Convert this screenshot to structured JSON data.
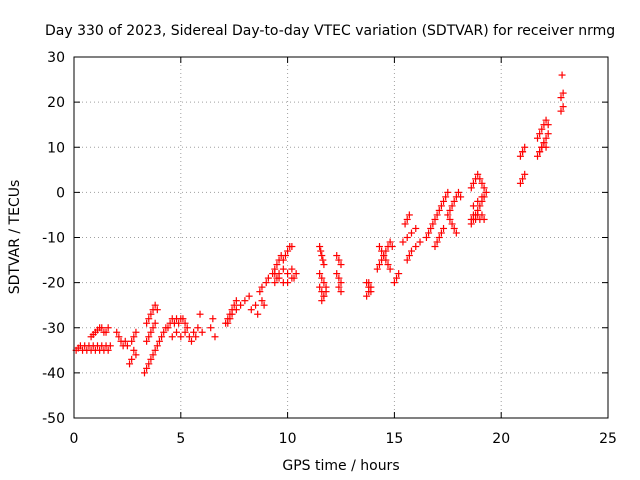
{
  "chart_data": {
    "type": "scatter",
    "title": "Day 330 of 2023, Sidereal Day-to-day VTEC variation (SDTVAR) for receiver nrmg",
    "xlabel": "GPS time / hours",
    "ylabel": "SDTVAR / TECUs",
    "xlim": [
      0,
      25
    ],
    "ylim": [
      -50,
      30
    ],
    "xticks": [
      0,
      5,
      10,
      15,
      20,
      25
    ],
    "yticks": [
      -50,
      -40,
      -30,
      -20,
      -10,
      0,
      10,
      20,
      30
    ],
    "grid": true,
    "marker": "plus",
    "color": "#ff0000",
    "series": [
      {
        "x": [
          0.1,
          0.2,
          0.3,
          0.4,
          0.5,
          0.6,
          0.7,
          0.8,
          0.9,
          1.0,
          1.1,
          1.2,
          1.3,
          1.4,
          1.5,
          1.6,
          1.7,
          0.8,
          0.9,
          1.0,
          1.1,
          1.2,
          1.3,
          1.4,
          1.5,
          1.6,
          2.0,
          2.1,
          2.2,
          2.3,
          2.4,
          2.5,
          2.7,
          2.8,
          2.9,
          2.6,
          2.7,
          2.8,
          2.9,
          3.3,
          3.4,
          3.5,
          3.6,
          3.7,
          3.8,
          3.9,
          4.0,
          4.1,
          4.2,
          4.3,
          3.4,
          3.5,
          3.6,
          3.7,
          3.8,
          3.9,
          3.4,
          3.5,
          3.6,
          3.7,
          3.8,
          4.4,
          4.5,
          4.6,
          4.7,
          4.8,
          4.9,
          5.0,
          5.1,
          5.2,
          5.3,
          4.6,
          4.8,
          5.0,
          5.2,
          5.4,
          5.6,
          5.8,
          6.0,
          5.5,
          5.7,
          5.9,
          6.4,
          6.6,
          6.5,
          7.1,
          7.2,
          7.3,
          7.4,
          7.5,
          7.6,
          7.2,
          7.3,
          7.4,
          7.6,
          7.8,
          8.0,
          8.2,
          8.3,
          8.5,
          8.6,
          8.8,
          8.9,
          8.7,
          8.8,
          9.0,
          9.1,
          9.3,
          9.4,
          9.5,
          9.6,
          9.7,
          9.8,
          9.9,
          10.0,
          10.1,
          10.2,
          9.4,
          9.6,
          9.8,
          10.0,
          10.2,
          10.3,
          10.4,
          9.4,
          9.5,
          9.6,
          9.8,
          10.0,
          10.2,
          11.5,
          11.55,
          11.6,
          11.65,
          11.7,
          11.5,
          11.6,
          11.7,
          11.8,
          11.5,
          11.6,
          11.7,
          11.8,
          11.6,
          11.7,
          12.3,
          12.4,
          12.5,
          12.3,
          12.4,
          12.5,
          12.4,
          12.5,
          13.7,
          13.8,
          13.9,
          13.7,
          13.8,
          13.9,
          13.8,
          14.2,
          14.3,
          14.4,
          14.5,
          14.6,
          14.7,
          14.8,
          14.9,
          14.3,
          14.4,
          14.5,
          14.6,
          14.7,
          14.8,
          15.0,
          15.1,
          15.2,
          15.4,
          15.6,
          15.8,
          16.0,
          15.5,
          15.6,
          15.7,
          15.6,
          15.7,
          15.8,
          16.0,
          16.2,
          16.5,
          16.6,
          16.7,
          16.8,
          16.9,
          17.0,
          17.1,
          17.2,
          17.3,
          17.4,
          17.5,
          16.9,
          17.0,
          17.1,
          17.2,
          17.3,
          17.5,
          17.6,
          17.7,
          17.8,
          17.9,
          17.6,
          17.7,
          17.8,
          17.9,
          18.0,
          18.1,
          18.6,
          18.7,
          18.8,
          18.9,
          19.0,
          19.1,
          19.2,
          19.3,
          18.6,
          18.7,
          18.8,
          18.9,
          19.0,
          19.1,
          19.2,
          18.6,
          18.7,
          18.8,
          18.9,
          19.0,
          19.1,
          19.2,
          18.7,
          18.9,
          19.1,
          20.9,
          21.0,
          21.1,
          20.9,
          21.0,
          21.1,
          21.0,
          21.7,
          21.8,
          21.9,
          22.0,
          22.1,
          22.2,
          21.7,
          21.8,
          21.9,
          22.0,
          22.1,
          22.2,
          21.8,
          21.9,
          22.0,
          22.1,
          22.8,
          22.9,
          22.8,
          22.9,
          22.85
        ],
        "y": [
          -35,
          -34.5,
          -34,
          -35,
          -34,
          -35,
          -34,
          -35,
          -34,
          -35,
          -34,
          -35,
          -34,
          -35,
          -34,
          -35,
          -34,
          -32,
          -31.5,
          -31,
          -30.5,
          -30,
          -30,
          -31,
          -31,
          -30,
          -31,
          -32,
          -33,
          -34,
          -33,
          -34,
          -33,
          -35,
          -36,
          -38,
          -37,
          -32,
          -31,
          -40,
          -39,
          -38,
          -37,
          -36,
          -35,
          -34,
          -33,
          -32,
          -31,
          -30,
          -29,
          -28,
          -27,
          -26,
          -25,
          -26,
          -33,
          -32,
          -31,
          -30,
          -29,
          -30,
          -29,
          -28,
          -29,
          -28,
          -29,
          -28,
          -28,
          -29,
          -30,
          -32,
          -31,
          -32,
          -31,
          -32,
          -31,
          -30,
          -31,
          -33,
          -32,
          -27,
          -30,
          -32,
          -28,
          -29,
          -28,
          -27,
          -26,
          -25,
          -24,
          -29,
          -28,
          -27,
          -26,
          -25,
          -24,
          -23,
          -26,
          -25,
          -27,
          -24,
          -25,
          -22,
          -21,
          -20,
          -19,
          -18,
          -17,
          -16,
          -15,
          -14,
          -15,
          -14,
          -13,
          -12,
          -12,
          -18,
          -19,
          -20,
          -18,
          -17,
          -19,
          -18,
          -20,
          -19,
          -18,
          -17,
          -20,
          -19,
          -12,
          -13,
          -14,
          -15,
          -16,
          -18,
          -19,
          -20,
          -21,
          -21,
          -22,
          -23,
          -22,
          -24,
          -23,
          -14,
          -15,
          -16,
          -18,
          -19,
          -20,
          -21,
          -22,
          -20,
          -21,
          -22,
          -23,
          -22,
          -21,
          -20,
          -17,
          -16,
          -15,
          -14,
          -13,
          -12,
          -11,
          -12,
          -12,
          -13,
          -14,
          -15,
          -16,
          -17,
          -20,
          -19,
          -18,
          -11,
          -10,
          -9,
          -8,
          -7,
          -6,
          -5,
          -15,
          -14,
          -13,
          -12,
          -11,
          -10,
          -9,
          -8,
          -7,
          -6,
          -5,
          -4,
          -3,
          -2,
          -1,
          0,
          -12,
          -11,
          -10,
          -9,
          -8,
          -5,
          -6,
          -7,
          -8,
          -9,
          -4,
          -3,
          -2,
          -1,
          0,
          -1,
          -7,
          -6,
          -5,
          -4,
          -3,
          -2,
          -1,
          0,
          1,
          2,
          3,
          4,
          3,
          2,
          1,
          -6,
          -5,
          -6,
          -5,
          -6,
          -5,
          -6,
          -3,
          -2,
          -1,
          2,
          3,
          4,
          8,
          9,
          10,
          9,
          8,
          9,
          10,
          11,
          12,
          13,
          12,
          13,
          14,
          15,
          16,
          15,
          9,
          10,
          11,
          10,
          18,
          19,
          21,
          22,
          26
        ]
      }
    ]
  }
}
